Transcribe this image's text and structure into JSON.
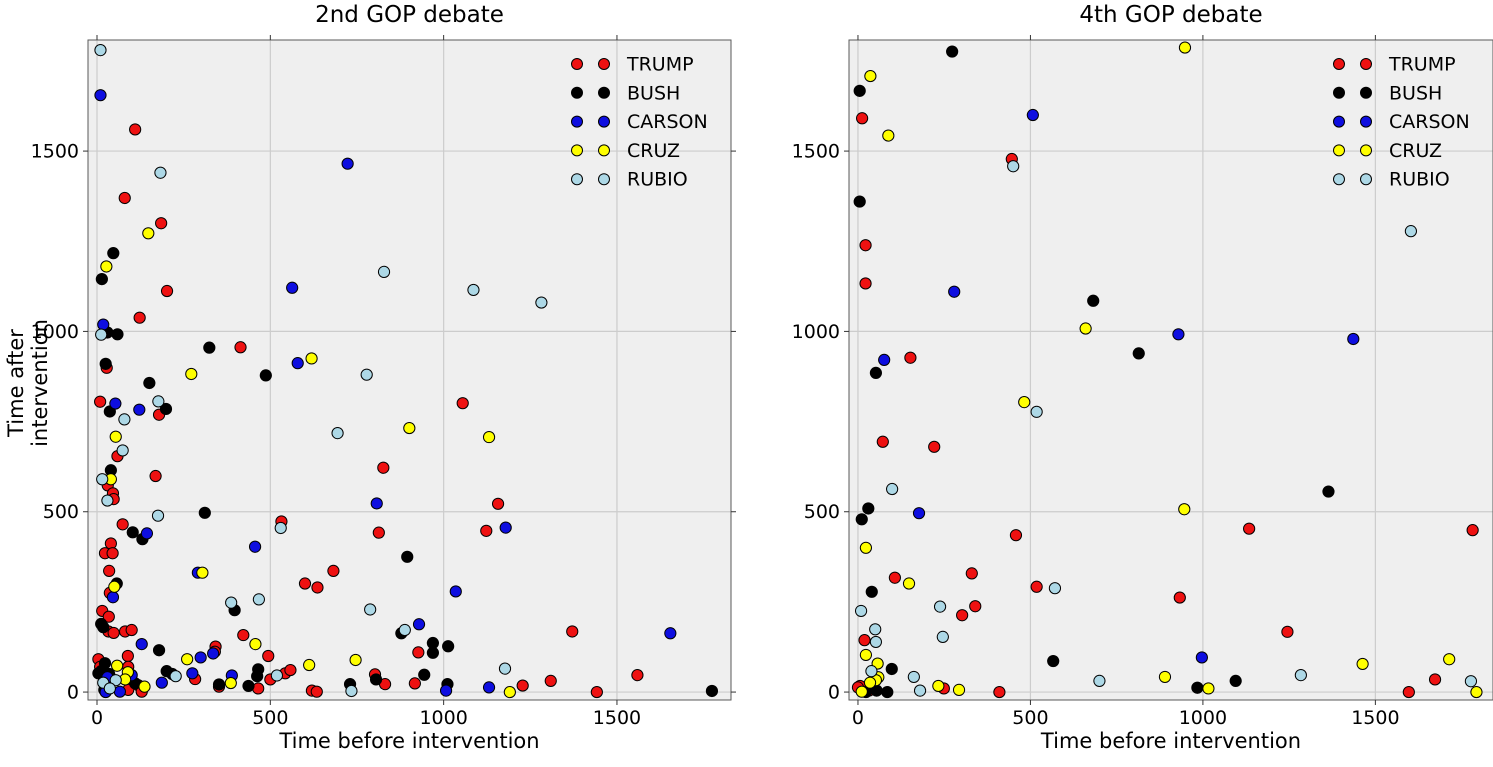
{
  "figure": {
    "background": "#ffffff",
    "plot_background": "#efefef",
    "grid_color": "#cccccc",
    "spine_color": "#5a5a5a",
    "tick_color": "#333333",
    "text_color": "#000000",
    "marker_edge_color": "#000000"
  },
  "chart_data": [
    {
      "type": "scatter",
      "title": "2nd GOP debate",
      "xlabel": "Time before intervention",
      "ylabel": "Time after intervention",
      "xlim": [
        -26,
        1829
      ],
      "ylim": [
        -22,
        1808
      ],
      "xticks": [
        0,
        500,
        1000,
        1500
      ],
      "yticks": [
        0,
        500,
        1000,
        1500
      ],
      "grid": true,
      "legend_position": "upper right",
      "series": [
        {
          "name": "TRUMP",
          "color": "#ee1111",
          "points": [
            [
              110,
              1560
            ],
            [
              80,
              1370
            ],
            [
              185,
              1300
            ],
            [
              202,
              1112
            ],
            [
              123,
              1038
            ],
            [
              414,
              956
            ],
            [
              28,
              899
            ],
            [
              9,
              805
            ],
            [
              179,
              769
            ],
            [
              59,
              654
            ],
            [
              169,
              599
            ],
            [
              31,
              573
            ],
            [
              46,
              551
            ],
            [
              48,
              535
            ],
            [
              532,
              473
            ],
            [
              74,
              465
            ],
            [
              40,
              412
            ],
            [
              23,
              385
            ],
            [
              45,
              385
            ],
            [
              35,
              336
            ],
            [
              682,
              336
            ],
            [
              600,
              301
            ],
            [
              636,
              290
            ],
            [
              37,
              275
            ],
            [
              15,
              225
            ],
            [
              34,
              209
            ],
            [
              33,
              168
            ],
            [
              48,
              164
            ],
            [
              81,
              168
            ],
            [
              100,
              172
            ],
            [
              422,
              158
            ],
            [
              342,
              126
            ],
            [
              340,
              112
            ],
            [
              89,
              100
            ],
            [
              494,
              100
            ],
            [
              4,
              91
            ],
            [
              90,
              70
            ],
            [
              9,
              70
            ],
            [
              543,
              52
            ],
            [
              558,
              61
            ],
            [
              500,
              35
            ],
            [
              283,
              36
            ],
            [
              465,
              10
            ],
            [
              352,
              15
            ],
            [
              119,
              19
            ],
            [
              90,
              6
            ],
            [
              129,
              1
            ],
            [
              620,
              4
            ],
            [
              634,
              1
            ],
            [
              1055,
              801
            ],
            [
              826,
              622
            ],
            [
              1157,
              522
            ],
            [
              1123,
              447
            ],
            [
              813,
              442
            ],
            [
              927,
              110
            ],
            [
              917,
              24
            ],
            [
              802,
              49
            ],
            [
              831,
              22
            ],
            [
              1228,
              18
            ],
            [
              1309,
              31
            ],
            [
              1371,
              168
            ],
            [
              1442,
              0
            ],
            [
              1559,
              47
            ]
          ]
        },
        {
          "name": "BUSH",
          "color": "#000000",
          "points": [
            [
              47,
              1217
            ],
            [
              14,
              1145
            ],
            [
              30,
              997
            ],
            [
              59,
              992
            ],
            [
              324,
              955
            ],
            [
              25,
              910
            ],
            [
              487,
              878
            ],
            [
              151,
              857
            ],
            [
              199,
              785
            ],
            [
              37,
              778
            ],
            [
              40,
              615
            ],
            [
              311,
              497
            ],
            [
              103,
              443
            ],
            [
              131,
              424
            ],
            [
              895,
              375
            ],
            [
              57,
              301
            ],
            [
              397,
              227
            ],
            [
              12,
              189
            ],
            [
              18,
              180
            ],
            [
              878,
              163
            ],
            [
              969,
              136
            ],
            [
              1013,
              127
            ],
            [
              969,
              109
            ],
            [
              179,
              116
            ],
            [
              23,
              80
            ],
            [
              12,
              58
            ],
            [
              35,
              50
            ],
            [
              4,
              52
            ],
            [
              201,
              58
            ],
            [
              217,
              50
            ],
            [
              110,
              24
            ],
            [
              21,
              6
            ],
            [
              352,
              21
            ],
            [
              462,
              44
            ],
            [
              465,
              63
            ],
            [
              437,
              17
            ],
            [
              944,
              48
            ],
            [
              805,
              35
            ],
            [
              730,
              22
            ],
            [
              1011,
              22
            ],
            [
              1774,
              3
            ]
          ]
        },
        {
          "name": "CARSON",
          "color": "#0e0ee0",
          "points": [
            [
              10,
              1655
            ],
            [
              723,
              1465
            ],
            [
              563,
              1121
            ],
            [
              18,
              1019
            ],
            [
              579,
              912
            ],
            [
              53,
              800
            ],
            [
              122,
              783
            ],
            [
              807,
              523
            ],
            [
              144,
              440
            ],
            [
              456,
              403
            ],
            [
              291,
              331
            ],
            [
              1035,
              279
            ],
            [
              46,
              263
            ],
            [
              929,
              188
            ],
            [
              1654,
              163
            ],
            [
              129,
              133
            ],
            [
              335,
              107
            ],
            [
              299,
              96
            ],
            [
              275,
              52
            ],
            [
              389,
              46
            ],
            [
              100,
              47
            ],
            [
              30,
              41
            ],
            [
              187,
              26
            ],
            [
              1131,
              13
            ],
            [
              1007,
              4
            ],
            [
              66,
              1
            ],
            [
              25,
              0
            ],
            [
              1179,
              456
            ]
          ]
        },
        {
          "name": "CRUZ",
          "color": "#ffff00",
          "points": [
            [
              148,
              1272
            ],
            [
              27,
              1180
            ],
            [
              619,
              925
            ],
            [
              272,
              882
            ],
            [
              901,
              732
            ],
            [
              1131,
              707
            ],
            [
              54,
              708
            ],
            [
              40,
              590
            ],
            [
              304,
              331
            ],
            [
              50,
              292
            ],
            [
              457,
              133
            ],
            [
              260,
              91
            ],
            [
              746,
              89
            ],
            [
              612,
              75
            ],
            [
              58,
              73
            ],
            [
              89,
              55
            ],
            [
              81,
              35
            ],
            [
              386,
              25
            ],
            [
              137,
              15
            ],
            [
              1191,
              0
            ]
          ]
        },
        {
          "name": "RUBIO",
          "color": "#add8e6",
          "points": [
            [
              10,
              1780
            ],
            [
              183,
              1440
            ],
            [
              828,
              1165
            ],
            [
              1086,
              1115
            ],
            [
              1282,
              1080
            ],
            [
              12,
              991
            ],
            [
              778,
              880
            ],
            [
              177,
              806
            ],
            [
              79,
              756
            ],
            [
              694,
              718
            ],
            [
              74,
              670
            ],
            [
              15,
              590
            ],
            [
              30,
              531
            ],
            [
              176,
              489
            ],
            [
              530,
              455
            ],
            [
              467,
              257
            ],
            [
              387,
              248
            ],
            [
              788,
              229
            ],
            [
              888,
              172
            ],
            [
              1177,
              65
            ],
            [
              519,
              46
            ],
            [
              227,
              44
            ],
            [
              54,
              33
            ],
            [
              18,
              26
            ],
            [
              37,
              10
            ],
            [
              734,
              3
            ]
          ]
        }
      ]
    },
    {
      "type": "scatter",
      "title": "4th GOP debate",
      "xlabel": "Time before intervention",
      "ylabel": "",
      "xlim": [
        -26,
        1841
      ],
      "ylim": [
        -22,
        1808
      ],
      "xticks": [
        0,
        500,
        1000,
        1500
      ],
      "yticks": [
        0,
        500,
        1000,
        1500
      ],
      "grid": true,
      "legend_position": "upper right",
      "series": [
        {
          "name": "TRUMP",
          "color": "#ee1111",
          "points": [
            [
              12,
              1591
            ],
            [
              446,
              1478
            ],
            [
              22,
              1239
            ],
            [
              22,
              1133
            ],
            [
              152,
              927
            ],
            [
              72,
              694
            ],
            [
              221,
              680
            ],
            [
              458,
              435
            ],
            [
              330,
              329
            ],
            [
              107,
              317
            ],
            [
              518,
              292
            ],
            [
              933,
              262
            ],
            [
              340,
              238
            ],
            [
              302,
              213
            ],
            [
              19,
              144
            ],
            [
              6,
              17
            ],
            [
              0,
              13
            ],
            [
              37,
              13
            ],
            [
              32,
              4
            ],
            [
              249,
              10
            ],
            [
              410,
              0
            ],
            [
              1134,
              453
            ],
            [
              1245,
              167
            ],
            [
              1782,
              449
            ],
            [
              1673,
              35
            ],
            [
              1597,
              0
            ]
          ]
        },
        {
          "name": "BUSH",
          "color": "#000000",
          "points": [
            [
              273,
              1776
            ],
            [
              5,
              1667
            ],
            [
              5,
              1360
            ],
            [
              682,
              1085
            ],
            [
              814,
              939
            ],
            [
              52,
              885
            ],
            [
              1364,
              556
            ],
            [
              30,
              509
            ],
            [
              11,
              479
            ],
            [
              40,
              278
            ],
            [
              566,
              86
            ],
            [
              98,
              64
            ],
            [
              54,
              4
            ],
            [
              23,
              0
            ],
            [
              85,
              0
            ],
            [
              984,
              12
            ],
            [
              1095,
              31
            ]
          ]
        },
        {
          "name": "CARSON",
          "color": "#0e0ee0",
          "points": [
            [
              507,
              1600
            ],
            [
              279,
              1110
            ],
            [
              929,
              992
            ],
            [
              1436,
              979
            ],
            [
              76,
              921
            ],
            [
              177,
              496
            ],
            [
              997,
              96
            ]
          ]
        },
        {
          "name": "CRUZ",
          "color": "#ffff00",
          "points": [
            [
              36,
              1708
            ],
            [
              88,
              1543
            ],
            [
              948,
              1787
            ],
            [
              660,
              1008
            ],
            [
              482,
              804
            ],
            [
              946,
              507
            ],
            [
              23,
              400
            ],
            [
              148,
              301
            ],
            [
              23,
              103
            ],
            [
              57,
              79
            ],
            [
              59,
              41
            ],
            [
              52,
              33
            ],
            [
              35,
              26
            ],
            [
              233,
              17
            ],
            [
              293,
              6
            ],
            [
              11,
              1
            ],
            [
              890,
              42
            ],
            [
              1016,
              10
            ],
            [
              1463,
              78
            ],
            [
              1714,
              91
            ],
            [
              1793,
              0
            ]
          ]
        },
        {
          "name": "RUBIO",
          "color": "#add8e6",
          "points": [
            [
              450,
              1458
            ],
            [
              1603,
              1278
            ],
            [
              518,
              777
            ],
            [
              99,
              563
            ],
            [
              571,
              288
            ],
            [
              9,
              225
            ],
            [
              238,
              237
            ],
            [
              246,
              153
            ],
            [
              50,
              174
            ],
            [
              52,
              139
            ],
            [
              39,
              58
            ],
            [
              162,
              42
            ],
            [
              180,
              4
            ],
            [
              700,
              31
            ],
            [
              1284,
              47
            ],
            [
              1777,
              30
            ]
          ]
        }
      ]
    }
  ]
}
